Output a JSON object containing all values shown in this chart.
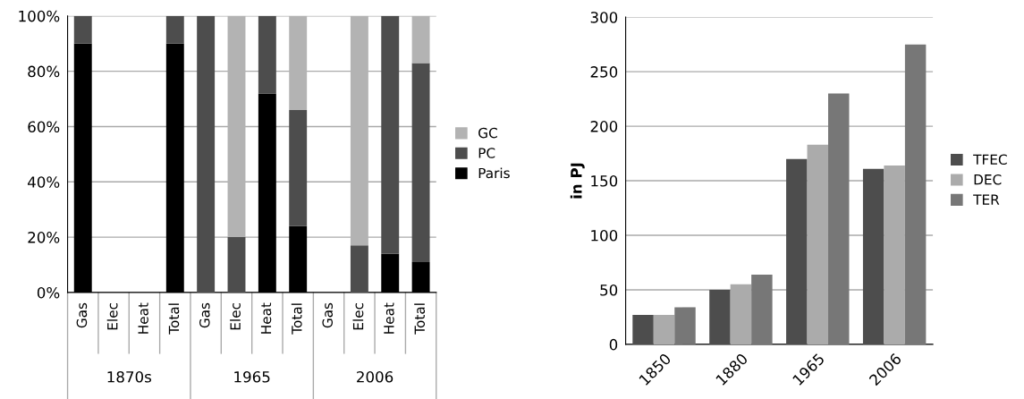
{
  "chart_data": [
    {
      "type": "bar",
      "stacked": true,
      "categories": [
        "Gas",
        "Elec",
        "Heat",
        "Total",
        "Gas",
        "Elec",
        "Heat",
        "Total",
        "Gas",
        "Elec",
        "Heat",
        "Total"
      ],
      "annotations": [
        "1870s",
        "1965",
        "2006"
      ],
      "series": [
        {
          "name": "Paris",
          "color": "#000000",
          "values": [
            90,
            null,
            null,
            90,
            0,
            0,
            72,
            24,
            null,
            0,
            14,
            11
          ]
        },
        {
          "name": "PC",
          "color": "#4d4d4d",
          "values": [
            10,
            null,
            null,
            10,
            100,
            20,
            28,
            42,
            null,
            17,
            86,
            72
          ]
        },
        {
          "name": "GC",
          "color": "#b3b3b3",
          "values": [
            0,
            null,
            null,
            0,
            0,
            80,
            0,
            34,
            null,
            83,
            0,
            17
          ]
        }
      ],
      "ylim": [
        0,
        100
      ],
      "yticks": [
        {
          "value": 0,
          "label": "0%"
        },
        {
          "value": 20,
          "label": "20%"
        },
        {
          "value": 40,
          "label": "40%"
        },
        {
          "value": 60,
          "label": "60%"
        },
        {
          "value": 80,
          "label": "80%"
        },
        {
          "value": 100,
          "label": "100%"
        }
      ],
      "grid": "y",
      "legend": "right"
    },
    {
      "type": "bar",
      "categories": [
        "1850",
        "1880",
        "1965",
        "2006"
      ],
      "ylabel": "in PJ",
      "series": [
        {
          "name": "TFEC",
          "color": "#4d4d4d",
          "values": [
            27,
            50,
            170,
            161
          ]
        },
        {
          "name": "DEC",
          "color": "#ababab",
          "values": [
            27,
            55,
            183,
            164
          ]
        },
        {
          "name": "TER",
          "color": "#777777",
          "values": [
            34,
            64,
            230,
            275
          ]
        }
      ],
      "ylim": [
        0,
        300
      ],
      "yticks": [
        0,
        50,
        100,
        150,
        200,
        250,
        300
      ],
      "grid": "y",
      "legend": "right"
    }
  ]
}
